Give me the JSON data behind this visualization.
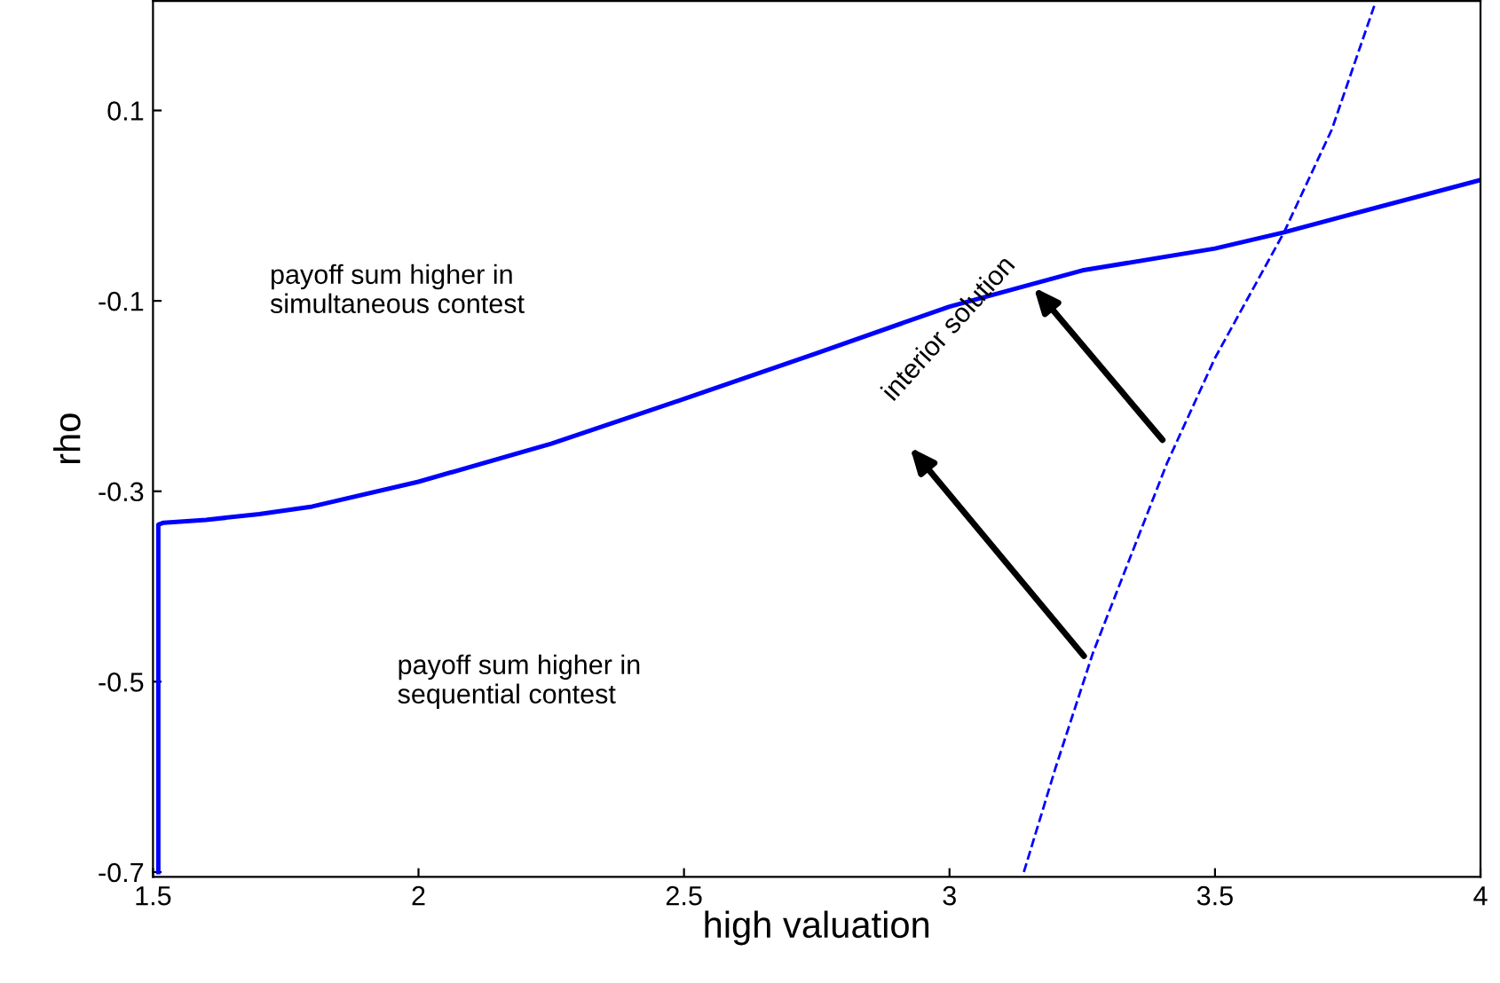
{
  "chart_data": {
    "type": "line",
    "xlabel": "high valuation",
    "ylabel": "rho",
    "xlim": [
      1.5,
      4
    ],
    "xticks": [
      1.5,
      2,
      2.5,
      3,
      3.5,
      4
    ],
    "ylim": [
      -0.705,
      0.215
    ],
    "yticks": [
      0.1,
      -0.1,
      -0.3,
      -0.5,
      -0.7
    ],
    "grid": false,
    "legend": false,
    "series": [
      {
        "color": "#0000ff",
        "line_style": "solid",
        "x": [
          1.51,
          1.51,
          1.52,
          1.6,
          1.7,
          1.8,
          2.0,
          2.25,
          2.5,
          2.75,
          3.0,
          3.25,
          3.5,
          3.63,
          3.75,
          4.0
        ],
        "values": [
          -0.7,
          -0.335,
          -0.333,
          -0.33,
          -0.324,
          -0.316,
          -0.29,
          -0.25,
          -0.203,
          -0.155,
          -0.106,
          -0.068,
          -0.045,
          -0.028,
          -0.01,
          0.027
        ]
      },
      {
        "color": "#0000ff",
        "line_style": "dashed",
        "x": [
          3.14,
          3.2,
          3.27,
          3.34,
          3.41,
          3.5,
          3.63,
          3.72,
          3.8
        ],
        "values": [
          -0.7,
          -0.59,
          -0.47,
          -0.37,
          -0.27,
          -0.16,
          -0.028,
          0.08,
          0.21
        ]
      }
    ],
    "annotations": [
      "payoff sum higher in\nsimultaneous contest",
      "payoff sum higher in\nsequential contest",
      "interior solution"
    ]
  }
}
